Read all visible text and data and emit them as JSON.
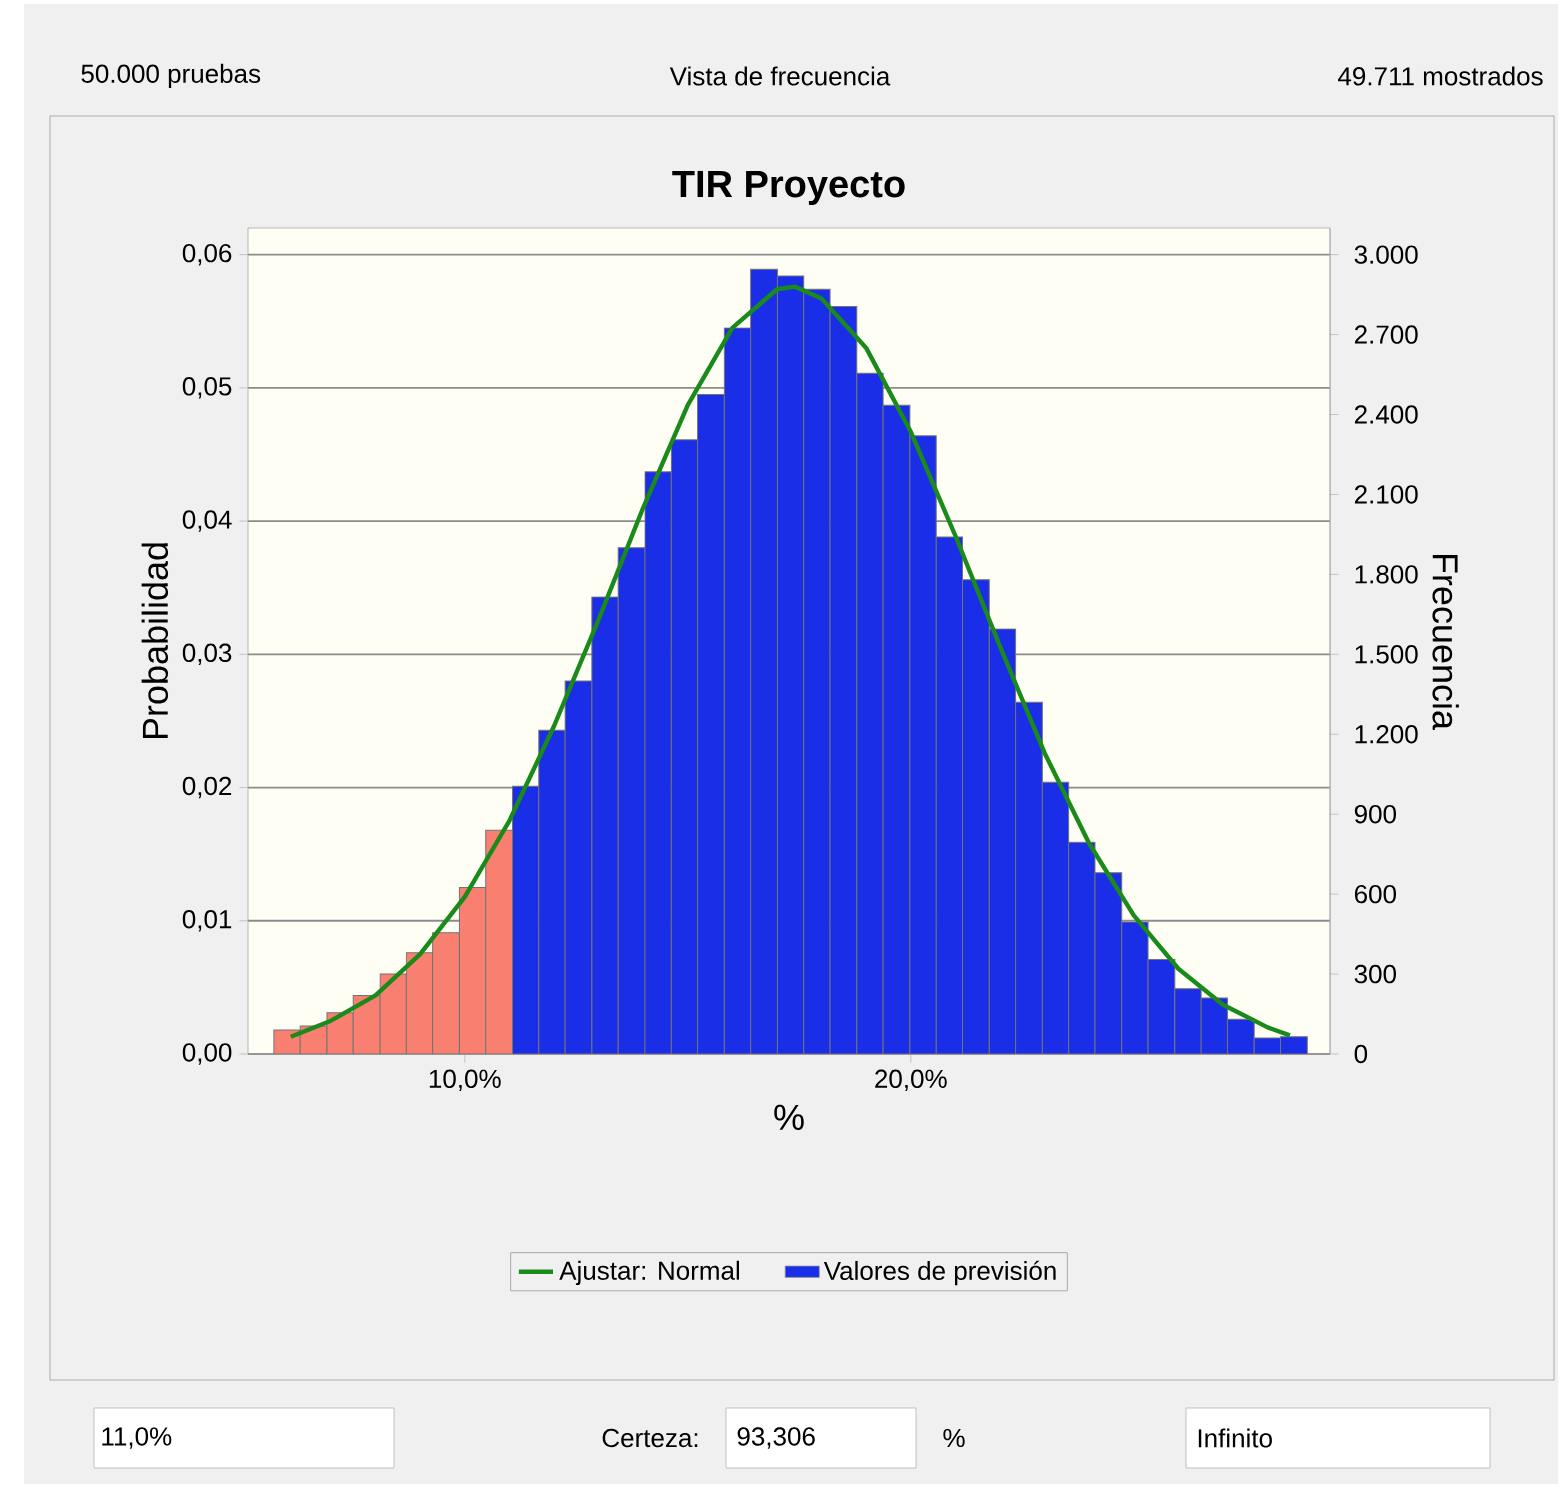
{
  "chart_data": {
    "type": "histogram",
    "title": "TIR Proyecto",
    "xlabel": "%",
    "ylabel": "Probabilidad",
    "y2label": "Frecuencia",
    "annotations": [
      "50.000 pruebas",
      "Vista de frecuencia",
      "49.711 mostrados",
      "11,0%",
      "Certeza:",
      "93,306",
      "%",
      "Infinito"
    ],
    "bins": [
      5.72,
      6.31,
      6.91,
      7.5,
      8.1,
      8.69,
      9.28,
      9.88,
      10.47,
      11.07,
      11.66,
      12.25,
      12.85,
      13.44,
      14.04,
      14.63,
      15.22,
      15.82,
      16.41,
      17.01,
      17.6,
      18.19,
      18.79,
      19.38,
      19.98,
      20.57,
      21.16,
      21.76,
      22.35,
      22.95,
      23.54,
      24.13,
      24.73,
      25.32,
      25.92,
      26.51,
      27.1,
      27.7,
      28.29,
      28.89
    ],
    "series": [
      {
        "name": "Ajustar: Normal",
        "type": "line",
        "color": "#1a8a1a",
        "x": [
          6.1,
          7,
          8,
          9,
          10,
          11,
          12,
          13,
          14,
          15,
          16,
          17,
          17.4,
          18,
          19,
          20,
          21,
          22,
          23,
          24,
          25,
          26,
          27,
          28,
          28.5
        ],
        "values": [
          0.0013,
          0.0025,
          0.0044,
          0.0075,
          0.0118,
          0.0175,
          0.0246,
          0.0326,
          0.041,
          0.0487,
          0.0545,
          0.0574,
          0.0576,
          0.0567,
          0.053,
          0.0467,
          0.0389,
          0.0306,
          0.0226,
          0.0158,
          0.0104,
          0.0064,
          0.0037,
          0.002,
          0.0014
        ]
      },
      {
        "name": "Valores de previsión",
        "type": "histogram",
        "color": "#1a2ee8",
        "colors": [
          "#f98070",
          "#f98070",
          "#f98070",
          "#f98070",
          "#f98070",
          "#f98070",
          "#f98070",
          "#f98070",
          "#f98070",
          "#1a2ee8",
          "#1a2ee8",
          "#1a2ee8",
          "#1a2ee8",
          "#1a2ee8",
          "#1a2ee8",
          "#1a2ee8",
          "#1a2ee8",
          "#1a2ee8",
          "#1a2ee8",
          "#1a2ee8",
          "#1a2ee8",
          "#1a2ee8",
          "#1a2ee8",
          "#1a2ee8",
          "#1a2ee8",
          "#1a2ee8",
          "#1a2ee8",
          "#1a2ee8",
          "#1a2ee8",
          "#1a2ee8",
          "#1a2ee8",
          "#1a2ee8",
          "#1a2ee8",
          "#1a2ee8",
          "#1a2ee8",
          "#1a2ee8",
          "#1a2ee8",
          "#1a2ee8",
          "#1a2ee8"
        ],
        "values": [
          0.0018,
          0.0021,
          0.0031,
          0.0044,
          0.006,
          0.0076,
          0.0091,
          0.0125,
          0.0168,
          0.0201,
          0.0243,
          0.028,
          0.0343,
          0.038,
          0.0437,
          0.0461,
          0.0495,
          0.0545,
          0.0589,
          0.0584,
          0.0574,
          0.0561,
          0.0511,
          0.0487,
          0.0464,
          0.0388,
          0.0356,
          0.0319,
          0.0264,
          0.0204,
          0.0159,
          0.0136,
          0.0099,
          0.0071,
          0.0049,
          0.0042,
          0.0026,
          0.0012,
          0.0013
        ]
      }
    ],
    "xlim": [
      5.14,
      29.4
    ],
    "ylim": [
      0,
      0.062
    ],
    "y2lim": [
      0,
      3100
    ],
    "xticks": [
      {
        "value": 10,
        "label": "10,0%"
      },
      {
        "value": 20,
        "label": "20,0%"
      }
    ],
    "yticks": [
      {
        "value": 0,
        "label": "0,00"
      },
      {
        "value": 0.01,
        "label": "0,01"
      },
      {
        "value": 0.02,
        "label": "0,02"
      },
      {
        "value": 0.03,
        "label": "0,03"
      },
      {
        "value": 0.04,
        "label": "0,04"
      },
      {
        "value": 0.05,
        "label": "0,05"
      },
      {
        "value": 0.06,
        "label": "0,06"
      }
    ],
    "y2ticks": [
      0,
      300,
      600,
      900,
      {
        "value": 1200,
        "label": "1.200"
      },
      {
        "value": 1500,
        "label": "1.500"
      },
      {
        "value": 1800,
        "label": "1.800"
      },
      {
        "value": 2100,
        "label": "2.100"
      },
      {
        "value": 2400,
        "label": "2.400"
      },
      {
        "value": 2700,
        "label": "2.700"
      },
      {
        "value": 3000,
        "label": "3.000"
      }
    ],
    "grid": "y",
    "legend": "bottom",
    "marker": "none",
    "line_style": "solid"
  }
}
